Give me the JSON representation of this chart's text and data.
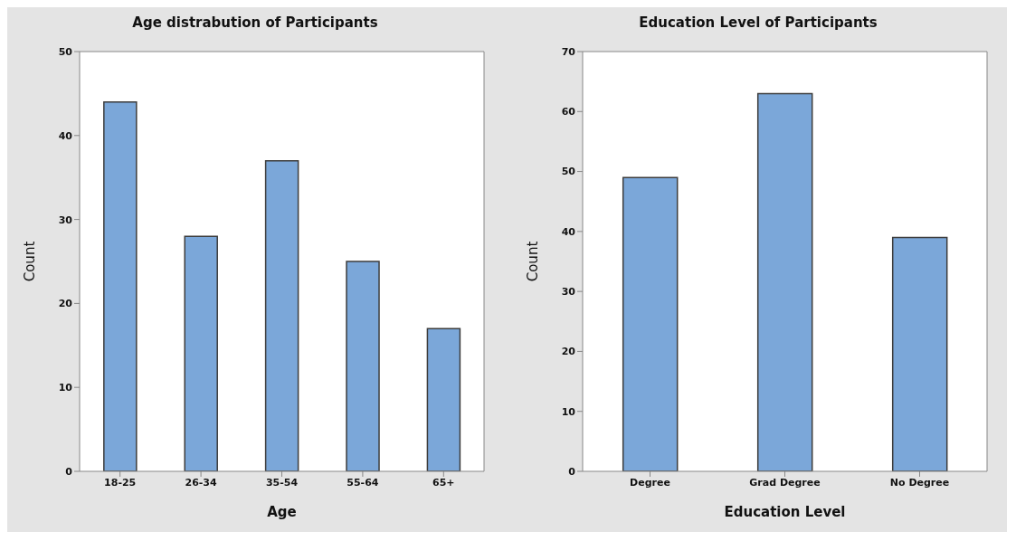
{
  "chart_data": [
    {
      "type": "bar",
      "title": "Age distrabution of Participants",
      "xlabel": "Age",
      "ylabel": "Count",
      "categories": [
        "18-25",
        "26-34",
        "35-54",
        "55-64",
        "65+"
      ],
      "values": [
        44,
        28,
        37,
        25,
        17
      ],
      "color": "#7ba7d9",
      "ylim": [
        0,
        50
      ],
      "yticks": [
        0,
        10,
        20,
        30,
        40,
        50
      ],
      "grid": false
    },
    {
      "type": "bar",
      "title": "Education Level of Participants",
      "xlabel": "Education Level",
      "ylabel": "Count",
      "categories": [
        "Degree",
        "Grad Degree",
        "No Degree"
      ],
      "values": [
        49,
        63,
        39
      ],
      "color": "#7ba7d9",
      "ylim": [
        0,
        70
      ],
      "yticks": [
        0,
        10,
        20,
        30,
        40,
        50,
        60,
        70
      ],
      "grid": false
    }
  ]
}
